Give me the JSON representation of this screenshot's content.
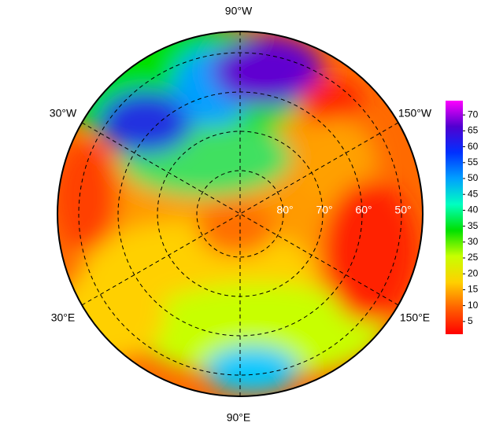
{
  "map": {
    "longitude_labels": [
      "90°W",
      "30°W",
      "150°W",
      "30°E",
      "150°E",
      "90°E"
    ],
    "latitude_labels": [
      "80°",
      "70°",
      "60°",
      "50°"
    ]
  },
  "colorbar": {
    "range": [
      1,
      74.5
    ],
    "ticks": [
      5,
      10,
      15,
      20,
      25,
      30,
      35,
      40,
      45,
      50,
      55,
      60,
      65,
      70
    ],
    "colors": [
      "#ff0000",
      "#ff6000",
      "#ffd000",
      "#c8ff00",
      "#00e000",
      "#00ffc0",
      "#00a0ff",
      "#0030ff",
      "#5000d0",
      "#ff00ff"
    ]
  }
}
